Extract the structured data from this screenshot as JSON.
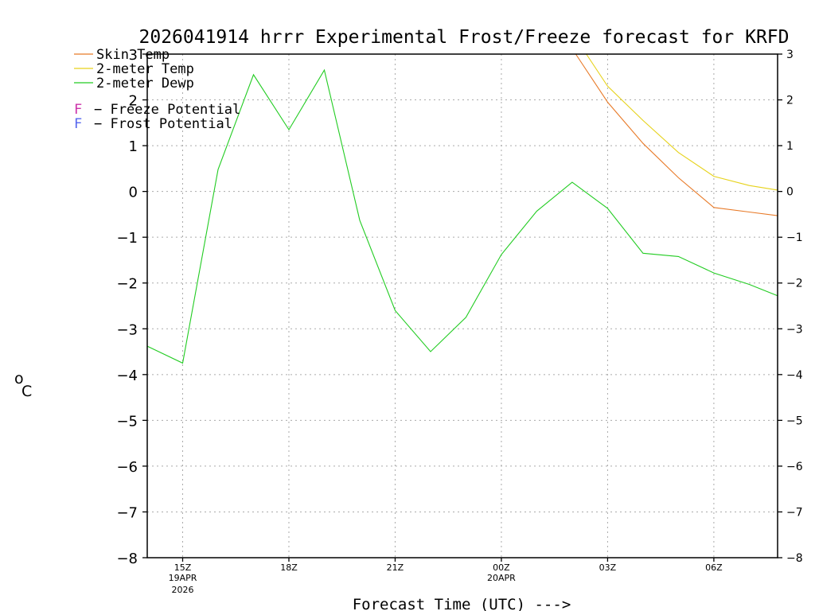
{
  "chart_data": {
    "type": "line",
    "title": "2026041914 hrrr Experimental Frost/Freeze forecast for KRFD",
    "xlabel": "Forecast Time (UTC) --->",
    "ylabel_unit": "o",
    "ylabel_text": "C",
    "ylim": [
      -8,
      3
    ],
    "xlim": [
      14,
      31.8
    ],
    "grid": true,
    "y_ticks": [
      -8,
      -7,
      -6,
      -5,
      -4,
      -3,
      -2,
      -1,
      0,
      1,
      2,
      3
    ],
    "y_tick_labels": [
      "−8",
      "−7",
      "−6",
      "−5",
      "−4",
      "−3",
      "−2",
      "−1",
      "0",
      "1",
      "2",
      "3"
    ],
    "x_ticks": [
      {
        "x": 15,
        "label": "15Z",
        "sub1": "19APR",
        "sub2": "2026"
      },
      {
        "x": 18,
        "label": "18Z",
        "sub1": "",
        "sub2": ""
      },
      {
        "x": 21,
        "label": "21Z",
        "sub1": "",
        "sub2": ""
      },
      {
        "x": 24,
        "label": "00Z",
        "sub1": "20APR",
        "sub2": ""
      },
      {
        "x": 27,
        "label": "03Z",
        "sub1": "",
        "sub2": ""
      },
      {
        "x": 30,
        "label": "06Z",
        "sub1": "",
        "sub2": ""
      }
    ],
    "series": [
      {
        "name": "Skin Temp",
        "color": "#e87a28",
        "x": [
          26.1,
          27,
          28,
          29,
          30,
          31,
          31.8
        ],
        "values": [
          3.0,
          1.95,
          1.05,
          0.3,
          -0.35,
          -0.45,
          -0.53
        ]
      },
      {
        "name": "2-meter Temp",
        "color": "#e6d21a",
        "x": [
          26.4,
          27,
          28,
          29,
          30,
          31,
          31.8
        ],
        "values": [
          3.0,
          2.3,
          1.55,
          0.85,
          0.33,
          0.13,
          0.03
        ]
      },
      {
        "name": "2-meter Dewp",
        "color": "#22cc22",
        "x": [
          14,
          15,
          16,
          17,
          18,
          19,
          20,
          21,
          22,
          23,
          24,
          25,
          26,
          27,
          28,
          29,
          30,
          31,
          31.8
        ],
        "values": [
          -3.38,
          -3.75,
          0.48,
          2.55,
          1.35,
          2.65,
          -0.63,
          -2.6,
          -3.5,
          -2.75,
          -1.38,
          -0.43,
          0.2,
          -0.37,
          -1.35,
          -1.42,
          -1.78,
          -2.03,
          -2.28
        ]
      }
    ],
    "legend": {
      "position": "top-left",
      "potentials": [
        {
          "letter": "F",
          "color": "#cc33aa",
          "label": "− Freeze Potential"
        },
        {
          "letter": "F",
          "color": "#5566ee",
          "label": "− Frost Potential"
        }
      ]
    }
  }
}
